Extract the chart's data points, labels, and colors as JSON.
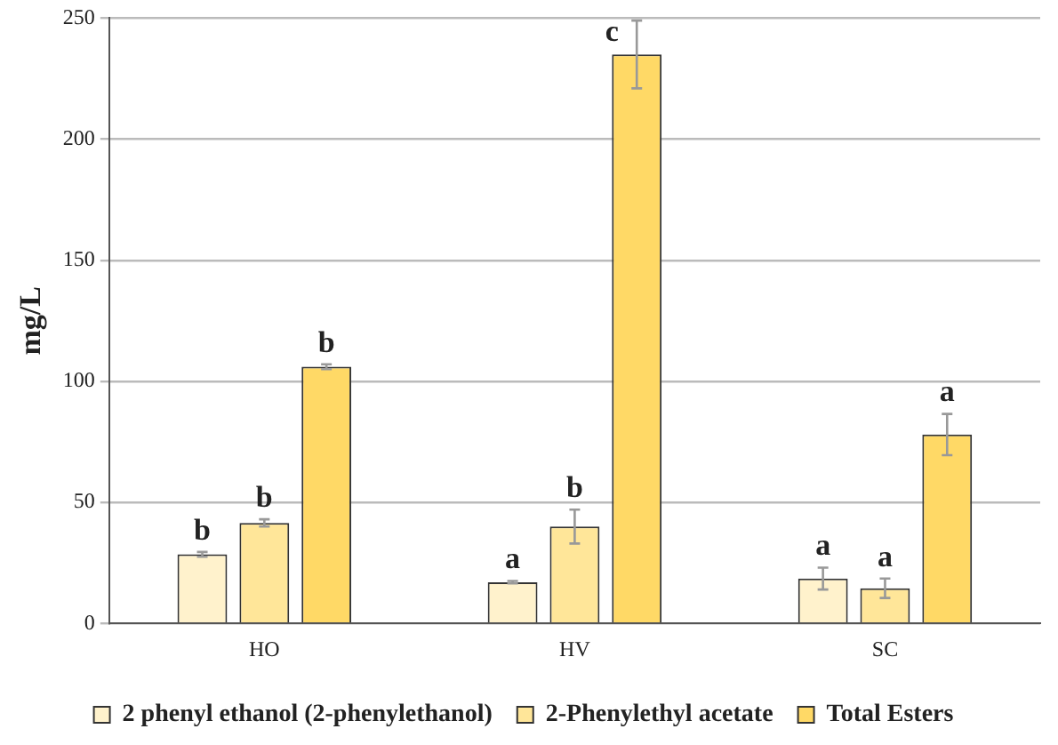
{
  "chart_data": {
    "type": "bar",
    "ylabel": "mg/L",
    "categories": [
      "HO",
      "HV",
      "SC"
    ],
    "series": [
      {
        "name": "2 phenyl ethanol (2-phenylethanol)",
        "color": "#fff2cc",
        "values": [
          28.5,
          17,
          18.5
        ],
        "errors": [
          1,
          0.5,
          4.5
        ],
        "value_labels": [
          "b",
          "a",
          "a"
        ]
      },
      {
        "name": "2-Phenylethyl acetate",
        "color": "#ffe699",
        "values": [
          41.5,
          40,
          14.5
        ],
        "errors": [
          1.5,
          7,
          4
        ],
        "value_labels": [
          "b",
          "b",
          "a"
        ]
      },
      {
        "name": "Total Esters",
        "color": "#ffd966",
        "values": [
          106,
          235,
          78
        ],
        "errors": [
          1,
          14,
          8.5
        ],
        "value_labels": [
          "b",
          "c",
          "a"
        ]
      }
    ],
    "ylim": [
      0,
      250
    ],
    "yticks": [
      0,
      50,
      100,
      150,
      200,
      250
    ],
    "grid": "y",
    "legend": "bottom"
  }
}
